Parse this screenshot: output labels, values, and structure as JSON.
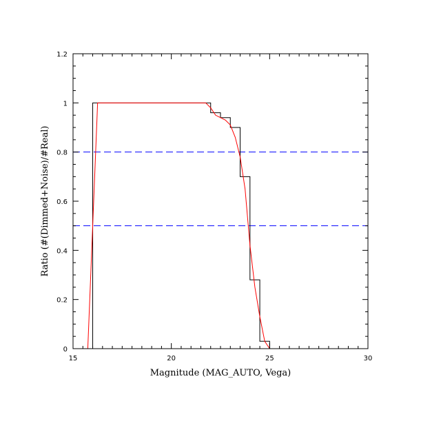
{
  "colors": {
    "background": "#ffffff",
    "axes": "#000000",
    "histogram": "#000000",
    "fit_curve": "#ff0000",
    "reference_lines": "#0000ff"
  },
  "chart_data": {
    "type": "line",
    "title": "",
    "xlabel": "Magnitude (MAG_AUTO, Vega)",
    "ylabel": "Ratio (#(Dimmed+Noise)/#Real)",
    "xlim": [
      15,
      30
    ],
    "ylim": [
      0,
      1.2
    ],
    "x_ticks": [
      "15",
      "20",
      "25",
      "30"
    ],
    "y_ticks": [
      "0",
      "0.2",
      "0.4",
      "0.6",
      "0.8",
      "1",
      "1.2"
    ],
    "grid": false,
    "legend": "none",
    "series": [
      {
        "style": "step",
        "color": "#000000",
        "bin_edges": [
          15.5,
          16.0,
          16.5,
          17.0,
          17.5,
          18.0,
          18.5,
          19.0,
          19.5,
          20.0,
          20.5,
          21.0,
          21.5,
          22.0,
          22.5,
          23.0,
          23.5,
          24.0,
          24.5,
          25.0,
          25.5,
          26.0,
          26.5,
          27.0,
          27.5,
          28.0,
          28.5,
          29.0,
          29.5,
          30.0
        ],
        "values": [
          0,
          1,
          1,
          1,
          1,
          1,
          1,
          1,
          1,
          1,
          1,
          1,
          1,
          0.96,
          0.94,
          0.9,
          0.7,
          0.28,
          0.03,
          0,
          0,
          0,
          0,
          0,
          0,
          0,
          0,
          0,
          0
        ]
      },
      {
        "style": "line",
        "color": "#ff0000",
        "x": [
          15.75,
          16.0,
          16.25,
          16.5,
          17.0,
          18.0,
          19.0,
          20.0,
          21.0,
          21.75,
          22.0,
          22.25,
          22.75,
          23.0,
          23.25,
          23.5,
          23.75,
          24.0,
          24.25,
          24.5,
          24.75,
          25.0,
          25.5,
          26.0,
          27.0,
          28.0,
          29.0,
          30.0
        ],
        "y": [
          0,
          0.5,
          1.0,
          1.0,
          1.0,
          1.0,
          1.0,
          1.0,
          1.0,
          1.0,
          0.98,
          0.95,
          0.93,
          0.91,
          0.86,
          0.78,
          0.65,
          0.42,
          0.25,
          0.13,
          0.03,
          0,
          0,
          0,
          0,
          0,
          0,
          0
        ]
      },
      {
        "style": "dashed",
        "color": "#0000ff",
        "x": [
          15,
          30
        ],
        "y": [
          0.8,
          0.8
        ]
      },
      {
        "style": "dashed",
        "color": "#0000ff",
        "x": [
          15,
          30
        ],
        "y": [
          0.5,
          0.5
        ]
      }
    ]
  }
}
